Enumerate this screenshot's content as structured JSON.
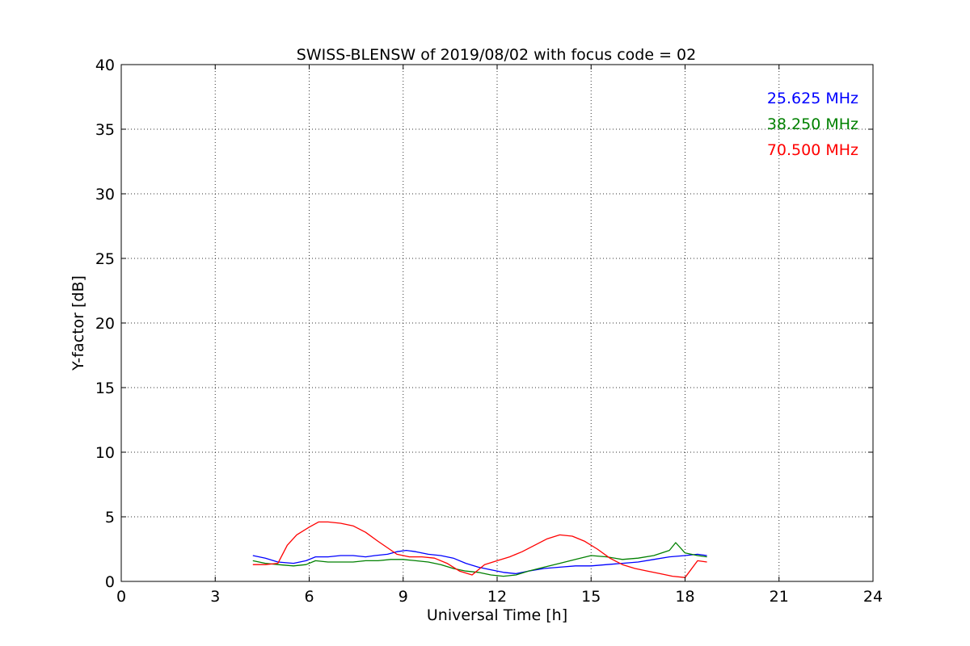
{
  "chart_data": {
    "type": "line",
    "title": "SWISS-BLENSW of 2019/08/02 with focus code = 02",
    "xlabel": "Universal Time [h]",
    "ylabel": "Y-factor [dB]",
    "xlim": [
      0,
      24
    ],
    "ylim": [
      0,
      40
    ],
    "xticks": [
      0,
      3,
      6,
      9,
      12,
      15,
      18,
      21,
      24
    ],
    "yticks": [
      0,
      5,
      10,
      15,
      20,
      25,
      30,
      35,
      40
    ],
    "grid": true,
    "legend_position": "top-right",
    "series": [
      {
        "name": "25.625 MHz",
        "color": "#0000ff",
        "x": [
          4.2,
          4.6,
          5.0,
          5.5,
          5.9,
          6.2,
          6.6,
          7.0,
          7.4,
          7.8,
          8.1,
          8.5,
          8.8,
          9.1,
          9.4,
          9.8,
          10.2,
          10.6,
          11.0,
          11.4,
          11.8,
          12.2,
          12.6,
          13.0,
          13.5,
          14.0,
          14.5,
          15.0,
          15.5,
          16.0,
          16.5,
          17.0,
          17.5,
          18.0,
          18.4,
          18.7
        ],
        "y": [
          2.0,
          1.8,
          1.5,
          1.4,
          1.6,
          1.9,
          1.9,
          2.0,
          2.0,
          1.9,
          2.0,
          2.1,
          2.3,
          2.4,
          2.3,
          2.1,
          2.0,
          1.8,
          1.4,
          1.1,
          0.9,
          0.7,
          0.6,
          0.8,
          1.0,
          1.1,
          1.2,
          1.2,
          1.3,
          1.4,
          1.5,
          1.7,
          1.9,
          2.0,
          2.1,
          2.0
        ]
      },
      {
        "name": "38.250 MHz",
        "color": "#008000",
        "x": [
          4.2,
          4.6,
          5.0,
          5.5,
          5.9,
          6.2,
          6.6,
          7.0,
          7.4,
          7.8,
          8.2,
          8.6,
          9.0,
          9.4,
          9.8,
          10.2,
          10.6,
          11.0,
          11.4,
          11.8,
          12.2,
          12.6,
          13.0,
          13.5,
          14.0,
          14.5,
          15.0,
          15.5,
          16.0,
          16.5,
          17.0,
          17.5,
          17.7,
          18.0,
          18.4,
          18.7
        ],
        "y": [
          1.6,
          1.4,
          1.3,
          1.2,
          1.3,
          1.6,
          1.5,
          1.5,
          1.5,
          1.6,
          1.6,
          1.7,
          1.7,
          1.6,
          1.5,
          1.3,
          1.0,
          0.8,
          0.7,
          0.5,
          0.4,
          0.5,
          0.8,
          1.1,
          1.4,
          1.7,
          2.0,
          1.9,
          1.7,
          1.8,
          2.0,
          2.4,
          3.0,
          2.2,
          2.0,
          1.9
        ]
      },
      {
        "name": "70.500 MHz",
        "color": "#ff0000",
        "x": [
          4.2,
          4.6,
          5.0,
          5.3,
          5.6,
          6.0,
          6.3,
          6.6,
          7.0,
          7.4,
          7.8,
          8.2,
          8.5,
          8.8,
          9.2,
          9.6,
          10.0,
          10.4,
          10.8,
          11.2,
          11.6,
          12.0,
          12.4,
          12.8,
          13.2,
          13.6,
          14.0,
          14.4,
          14.8,
          15.2,
          15.6,
          16.0,
          16.4,
          16.8,
          17.2,
          17.6,
          18.0,
          18.4,
          18.7
        ],
        "y": [
          1.3,
          1.3,
          1.4,
          2.8,
          3.6,
          4.2,
          4.6,
          4.6,
          4.5,
          4.3,
          3.8,
          3.1,
          2.6,
          2.1,
          1.9,
          1.9,
          1.8,
          1.4,
          0.8,
          0.5,
          1.3,
          1.6,
          1.9,
          2.3,
          2.8,
          3.3,
          3.6,
          3.5,
          3.1,
          2.5,
          1.8,
          1.3,
          1.0,
          0.8,
          0.6,
          0.4,
          0.3,
          1.6,
          1.5
        ]
      }
    ]
  }
}
